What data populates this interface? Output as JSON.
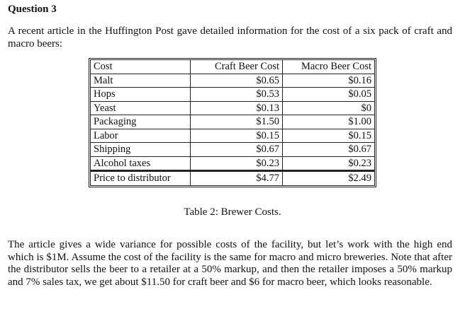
{
  "question": {
    "title": "Question 3",
    "intro": "A recent article in the Huffington Post gave detailed information for the cost of a six pack of craft and macro beers:"
  },
  "table": {
    "header": [
      "Cost",
      "Craft Beer Cost",
      "Macro Beer Cost"
    ],
    "rows": [
      [
        "Malt",
        "$0.65",
        "$0.16"
      ],
      [
        "Hops",
        "$0.53",
        "$0.05"
      ],
      [
        "Yeast",
        "$0.13",
        "$0"
      ],
      [
        "Packaging",
        "$1.50",
        "$1.00"
      ],
      [
        "Labor",
        "$0.15",
        "$0.15"
      ],
      [
        "Shipping",
        "$0.67",
        "$0.67"
      ],
      [
        "Alcohol taxes",
        "$0.23",
        "$0.23"
      ]
    ],
    "total_row": [
      "Price to distributor",
      "$4.77",
      "$2.49"
    ],
    "caption": "Table 2: Brewer Costs."
  },
  "body": {
    "paragraph": "The article gives a wide variance for possible costs of the facility, but let’s work with the high end which is $1M. Assume the cost of the facility is the same for macro and micro breweries. Note that after the distributor sells the beer to a retailer at a 50% markup, and then the retailer imposes a 50% markup and 7% sales tax, we get about $11.50 for craft beer and $6 for macro beer, which looks reasonable."
  }
}
